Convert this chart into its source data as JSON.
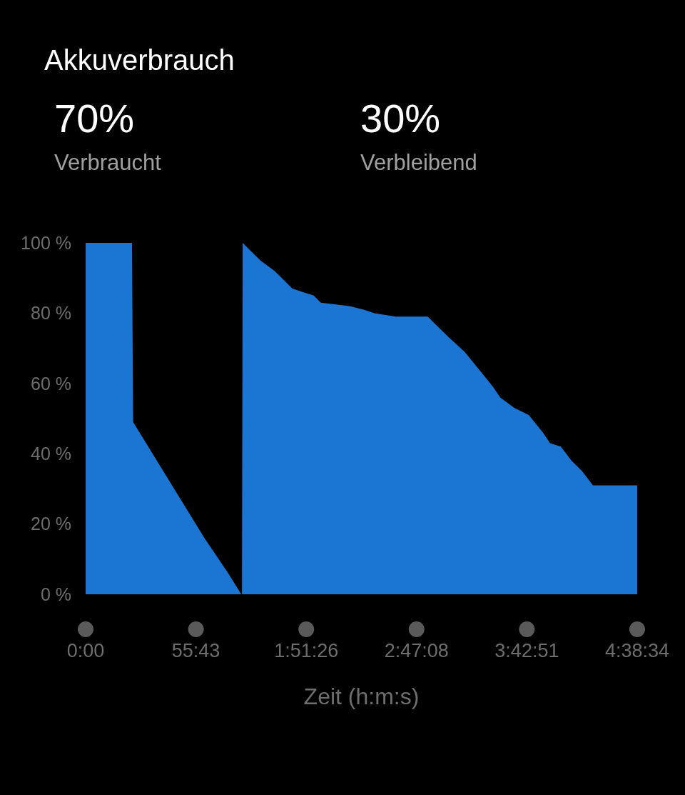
{
  "chart_data": {
    "type": "area",
    "title": "Akkuverbrauch",
    "annotations": [
      "70%",
      "Verbraucht",
      "30%",
      "Verbleibend"
    ],
    "xlabel": "Zeit (h:m:s)",
    "x": [
      0,
      1404,
      1440,
      2160,
      2880,
      3600,
      4320,
      4716,
      4738,
      4759,
      4968,
      5292,
      5724,
      6048,
      6264,
      6588,
      6912,
      7128,
      7992,
      8424,
      8748,
      9396,
      10368,
      10584,
      11016,
      11484,
      11916,
      12348,
      12564,
      12996,
      13428,
      13860,
      14076,
      14400,
      14724,
      15048,
      15372,
      16714
    ],
    "series": [
      {
        "color": "#1b76d3",
        "values": [
          100,
          100,
          49,
          38,
          27,
          16,
          6,
          0,
          0,
          100,
          98,
          95,
          92,
          89,
          87,
          86,
          85,
          83,
          82,
          81,
          80,
          79,
          79,
          77,
          73,
          69,
          64,
          59,
          56,
          53,
          51,
          46,
          43,
          42,
          38,
          35,
          31,
          31
        ]
      }
    ],
    "xlim": [
      0,
      16714
    ],
    "xticks": [
      {
        "value": 0,
        "label": "0:00"
      },
      {
        "value": 3343,
        "label": "55:43"
      },
      {
        "value": 6686,
        "label": "1:51:26"
      },
      {
        "value": 10028,
        "label": "2:47:08"
      },
      {
        "value": 13371,
        "label": "3:42:51"
      },
      {
        "value": 16714,
        "label": "4:38:34"
      }
    ],
    "ylim": [
      0,
      100
    ],
    "yticks": [
      {
        "value": 0,
        "label": "0 %"
      },
      {
        "value": 20,
        "label": "20 %"
      },
      {
        "value": 40,
        "label": "40 %"
      },
      {
        "value": 60,
        "label": "60 %"
      },
      {
        "value": 80,
        "label": "80 %"
      },
      {
        "value": 100,
        "label": "100 %"
      }
    ]
  }
}
